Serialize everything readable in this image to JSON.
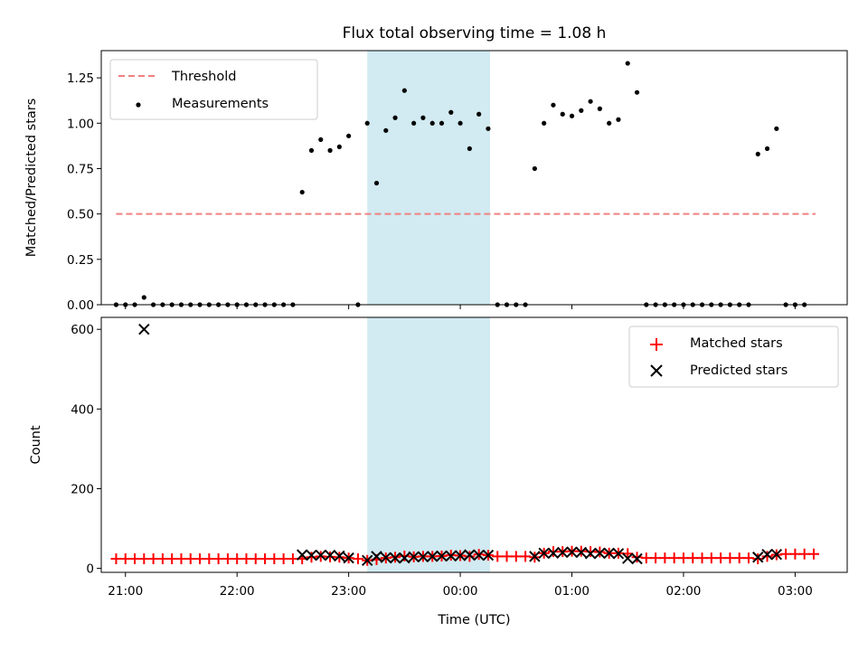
{
  "chart_data": [
    {
      "id": "ratio",
      "type": "scatter",
      "title": "Flux total observing time = 1.08 h",
      "xlabel": "",
      "ylabel": "Matched/Predicted stars",
      "xlim": [
        "20:47",
        "03:28"
      ],
      "ylim": [
        0,
        1.4
      ],
      "yticks": [
        "0.00",
        "0.25",
        "0.50",
        "0.75",
        "1.00",
        "1.25"
      ],
      "legend_position": "upper-left",
      "shaded_region": {
        "start": "23:10",
        "end": "00:16",
        "color": "#add8e6"
      },
      "threshold": {
        "name": "Threshold",
        "value": 0.5,
        "start": "20:55",
        "end": "03:11",
        "color": "#f08080"
      },
      "series": [
        {
          "name": "Measurements",
          "color": "#000000",
          "points": [
            [
              "20:55",
              0
            ],
            [
              "21:00",
              0
            ],
            [
              "21:05",
              0
            ],
            [
              "21:10",
              0.04
            ],
            [
              "21:15",
              0
            ],
            [
              "21:20",
              0
            ],
            [
              "21:25",
              0
            ],
            [
              "21:30",
              0
            ],
            [
              "21:35",
              0
            ],
            [
              "21:40",
              0
            ],
            [
              "21:45",
              0
            ],
            [
              "21:50",
              0
            ],
            [
              "21:55",
              0
            ],
            [
              "22:00",
              0
            ],
            [
              "22:05",
              0
            ],
            [
              "22:10",
              0
            ],
            [
              "22:15",
              0
            ],
            [
              "22:20",
              0
            ],
            [
              "22:25",
              0
            ],
            [
              "22:30",
              0
            ],
            [
              "22:35",
              0.62
            ],
            [
              "22:40",
              0.85
            ],
            [
              "22:45",
              0.91
            ],
            [
              "22:50",
              0.85
            ],
            [
              "22:55",
              0.87
            ],
            [
              "23:00",
              0.93
            ],
            [
              "23:05",
              0
            ],
            [
              "23:10",
              1.0
            ],
            [
              "23:15",
              0.67
            ],
            [
              "23:20",
              0.96
            ],
            [
              "23:25",
              1.03
            ],
            [
              "23:30",
              1.18
            ],
            [
              "23:35",
              1.0
            ],
            [
              "23:40",
              1.03
            ],
            [
              "23:45",
              1.0
            ],
            [
              "23:50",
              1.0
            ],
            [
              "23:55",
              1.06
            ],
            [
              "00:00",
              1.0
            ],
            [
              "00:05",
              0.86
            ],
            [
              "00:10",
              1.05
            ],
            [
              "00:15",
              0.97
            ],
            [
              "00:20",
              0
            ],
            [
              "00:25",
              0
            ],
            [
              "00:30",
              0
            ],
            [
              "00:35",
              0
            ],
            [
              "00:40",
              0.75
            ],
            [
              "00:45",
              1.0
            ],
            [
              "00:50",
              1.1
            ],
            [
              "00:55",
              1.05
            ],
            [
              "01:00",
              1.04
            ],
            [
              "01:05",
              1.07
            ],
            [
              "01:10",
              1.12
            ],
            [
              "01:15",
              1.08
            ],
            [
              "01:20",
              1.0
            ],
            [
              "01:25",
              1.02
            ],
            [
              "01:30",
              1.33
            ],
            [
              "01:35",
              1.17
            ],
            [
              "01:40",
              0
            ],
            [
              "01:45",
              0
            ],
            [
              "01:50",
              0
            ],
            [
              "01:55",
              0
            ],
            [
              "02:00",
              0
            ],
            [
              "02:05",
              0
            ],
            [
              "02:10",
              0
            ],
            [
              "02:15",
              0
            ],
            [
              "02:20",
              0
            ],
            [
              "02:25",
              0
            ],
            [
              "02:30",
              0
            ],
            [
              "02:35",
              0
            ],
            [
              "02:40",
              0.83
            ],
            [
              "02:45",
              0.86
            ],
            [
              "02:50",
              0.97
            ],
            [
              "02:55",
              0
            ],
            [
              "03:00",
              0
            ],
            [
              "03:05",
              0
            ]
          ]
        }
      ]
    },
    {
      "id": "counts",
      "type": "scatter",
      "title": "",
      "xlabel": "Time (UTC)",
      "ylabel": "Count",
      "xlim": [
        "20:47",
        "03:28"
      ],
      "ylim": [
        -10,
        630
      ],
      "yticks": [
        "0",
        "200",
        "400",
        "600"
      ],
      "xticks": [
        "21:00",
        "22:00",
        "23:00",
        "00:00",
        "01:00",
        "02:00",
        "03:00"
      ],
      "legend_position": "upper-right",
      "shaded_region": {
        "start": "23:10",
        "end": "00:16",
        "color": "#add8e6"
      },
      "series": [
        {
          "name": "Matched stars",
          "marker": "plus",
          "color": "#ff0000",
          "points": [
            [
              "20:55",
              24
            ],
            [
              "21:00",
              24
            ],
            [
              "21:05",
              24
            ],
            [
              "21:10",
              24
            ],
            [
              "21:15",
              24
            ],
            [
              "21:20",
              24
            ],
            [
              "21:25",
              24
            ],
            [
              "21:30",
              24
            ],
            [
              "21:35",
              24
            ],
            [
              "21:40",
              24
            ],
            [
              "21:45",
              24
            ],
            [
              "21:50",
              24
            ],
            [
              "21:55",
              24
            ],
            [
              "22:00",
              24
            ],
            [
              "22:05",
              24
            ],
            [
              "22:10",
              24
            ],
            [
              "22:15",
              24
            ],
            [
              "22:20",
              24
            ],
            [
              "22:25",
              24
            ],
            [
              "22:30",
              24
            ],
            [
              "22:35",
              24
            ],
            [
              "22:40",
              28
            ],
            [
              "22:45",
              30
            ],
            [
              "22:50",
              29
            ],
            [
              "22:55",
              28
            ],
            [
              "23:00",
              26
            ],
            [
              "23:05",
              24
            ],
            [
              "23:10",
              20
            ],
            [
              "23:15",
              22
            ],
            [
              "23:20",
              26
            ],
            [
              "23:25",
              28
            ],
            [
              "23:30",
              31
            ],
            [
              "23:35",
              29
            ],
            [
              "23:40",
              30
            ],
            [
              "23:45",
              30
            ],
            [
              "23:50",
              31
            ],
            [
              "23:55",
              33
            ],
            [
              "00:00",
              32
            ],
            [
              "00:05",
              30
            ],
            [
              "00:10",
              35
            ],
            [
              "00:15",
              33
            ],
            [
              "00:20",
              30
            ],
            [
              "00:25",
              30
            ],
            [
              "00:30",
              30
            ],
            [
              "00:35",
              30
            ],
            [
              "00:40",
              28
            ],
            [
              "00:45",
              38
            ],
            [
              "00:50",
              42
            ],
            [
              "00:55",
              42
            ],
            [
              "01:00",
              43
            ],
            [
              "01:05",
              43
            ],
            [
              "01:10",
              42
            ],
            [
              "01:15",
              41
            ],
            [
              "01:20",
              38
            ],
            [
              "01:25",
              38
            ],
            [
              "01:30",
              37
            ],
            [
              "01:35",
              28
            ],
            [
              "01:40",
              26
            ],
            [
              "01:45",
              26
            ],
            [
              "01:50",
              26
            ],
            [
              "01:55",
              26
            ],
            [
              "02:00",
              26
            ],
            [
              "02:05",
              26
            ],
            [
              "02:10",
              26
            ],
            [
              "02:15",
              26
            ],
            [
              "02:20",
              26
            ],
            [
              "02:25",
              26
            ],
            [
              "02:30",
              26
            ],
            [
              "02:35",
              26
            ],
            [
              "02:40",
              24
            ],
            [
              "02:45",
              30
            ],
            [
              "02:50",
              34
            ],
            [
              "02:55",
              36
            ],
            [
              "03:00",
              36
            ],
            [
              "03:05",
              36
            ],
            [
              "03:10",
              36
            ]
          ]
        },
        {
          "name": "Predicted stars",
          "marker": "x",
          "color": "#000000",
          "points": [
            [
              "21:10",
              600
            ],
            [
              "22:35",
              34
            ],
            [
              "22:40",
              33
            ],
            [
              "22:45",
              33
            ],
            [
              "22:50",
              33
            ],
            [
              "22:55",
              31
            ],
            [
              "23:00",
              26
            ],
            [
              "23:10",
              20
            ],
            [
              "23:15",
              30
            ],
            [
              "23:20",
              27
            ],
            [
              "23:25",
              26
            ],
            [
              "23:30",
              26
            ],
            [
              "23:35",
              29
            ],
            [
              "23:40",
              29
            ],
            [
              "23:45",
              30
            ],
            [
              "23:50",
              31
            ],
            [
              "23:55",
              31
            ],
            [
              "00:00",
              32
            ],
            [
              "00:05",
              34
            ],
            [
              "00:10",
              33
            ],
            [
              "00:15",
              33
            ],
            [
              "00:40",
              30
            ],
            [
              "00:45",
              38
            ],
            [
              "00:50",
              38
            ],
            [
              "00:55",
              40
            ],
            [
              "01:00",
              41
            ],
            [
              "01:05",
              40
            ],
            [
              "01:10",
              37
            ],
            [
              "01:15",
              38
            ],
            [
              "01:20",
              38
            ],
            [
              "01:25",
              37
            ],
            [
              "01:30",
              25
            ],
            [
              "01:35",
              24
            ],
            [
              "02:40",
              28
            ],
            [
              "02:45",
              35
            ],
            [
              "02:50",
              35
            ]
          ]
        }
      ]
    }
  ]
}
